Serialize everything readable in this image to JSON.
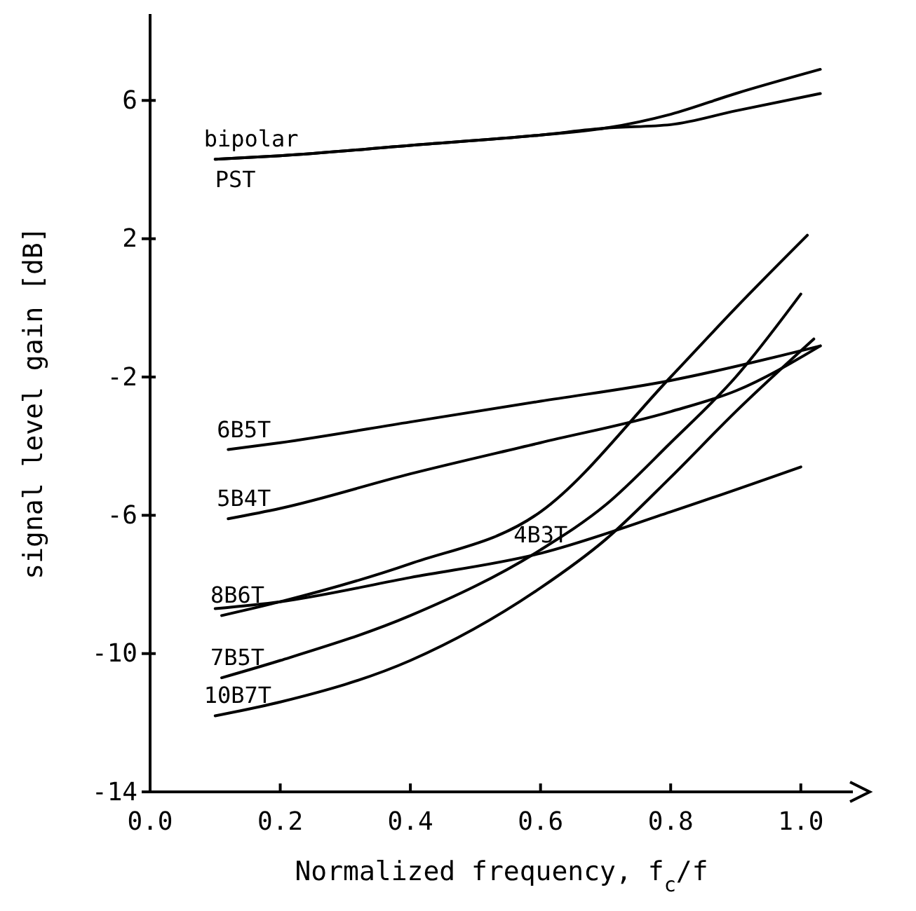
{
  "chart_data": {
    "type": "line",
    "xlabel": "Normalized frequency, f$_{c}$/f",
    "ylabel": "signal level gain [dB]",
    "xlim": [
      0,
      1.08
    ],
    "xticks": [
      {
        "value": 0,
        "label": "0.0"
      },
      {
        "value": 0.2,
        "label": "0.2"
      },
      {
        "value": 0.4,
        "label": "0.4"
      },
      {
        "value": 0.6,
        "label": "0.6"
      },
      {
        "value": 0.8,
        "label": "0.8"
      },
      {
        "value": 1,
        "label": "1.0"
      }
    ],
    "ylim": [
      -14,
      8.5
    ],
    "yticks": [
      6,
      2,
      -2,
      -6,
      -10,
      -14
    ],
    "grid": false,
    "marker": "none",
    "line_style": "solid",
    "series": [
      {
        "name": "bipolar",
        "color": "#000000",
        "x": [
          0.1,
          0.2,
          0.4,
          0.6,
          0.7,
          0.8,
          0.9,
          1.03
        ],
        "values": [
          4.3,
          4.4,
          4.7,
          5.0,
          5.2,
          5.6,
          6.2,
          6.9
        ]
      },
      {
        "name": "PST",
        "color": "#000000",
        "x": [
          0.1,
          0.2,
          0.4,
          0.6,
          0.7,
          0.8,
          0.9,
          1.03
        ],
        "values": [
          4.3,
          4.4,
          4.7,
          5.0,
          5.2,
          5.3,
          5.7,
          6.2
        ]
      },
      {
        "name": "6B5T",
        "color": "#000000",
        "x": [
          0.12,
          0.2,
          0.4,
          0.6,
          0.8,
          1.03
        ],
        "values": [
          -4.1,
          -3.9,
          -3.3,
          -2.7,
          -2.1,
          -1.1
        ]
      },
      {
        "name": "5B4T",
        "color": "#000000",
        "x": [
          0.12,
          0.2,
          0.4,
          0.6,
          0.8,
          0.9,
          1.03
        ],
        "values": [
          -6.1,
          -5.8,
          -4.8,
          -3.9,
          -3.0,
          -2.4,
          -1.1
        ]
      },
      {
        "name": "4B3T",
        "color": "#000000",
        "x": [
          0.1,
          0.2,
          0.4,
          0.6,
          0.8,
          1.0
        ],
        "values": [
          -8.7,
          -8.5,
          -7.8,
          -7.1,
          -5.9,
          -4.6
        ]
      },
      {
        "name": "8B6T",
        "color": "#000000",
        "x": [
          0.11,
          0.2,
          0.4,
          0.6,
          0.8,
          0.9,
          1.01
        ],
        "values": [
          -8.9,
          -8.5,
          -7.4,
          -5.9,
          -2.0,
          0.0,
          2.1
        ]
      },
      {
        "name": "7B5T",
        "color": "#000000",
        "x": [
          0.11,
          0.2,
          0.4,
          0.6,
          0.7,
          0.8,
          0.9,
          1.0
        ],
        "values": [
          -10.7,
          -10.2,
          -8.9,
          -7.0,
          -5.7,
          -3.9,
          -2.0,
          0.4
        ]
      },
      {
        "name": "10B7T",
        "color": "#000000",
        "x": [
          0.1,
          0.2,
          0.4,
          0.6,
          0.7,
          0.8,
          0.9,
          1.02
        ],
        "values": [
          -11.8,
          -11.4,
          -10.2,
          -8.1,
          -6.7,
          -4.9,
          -3.0,
          -0.9
        ]
      }
    ]
  }
}
